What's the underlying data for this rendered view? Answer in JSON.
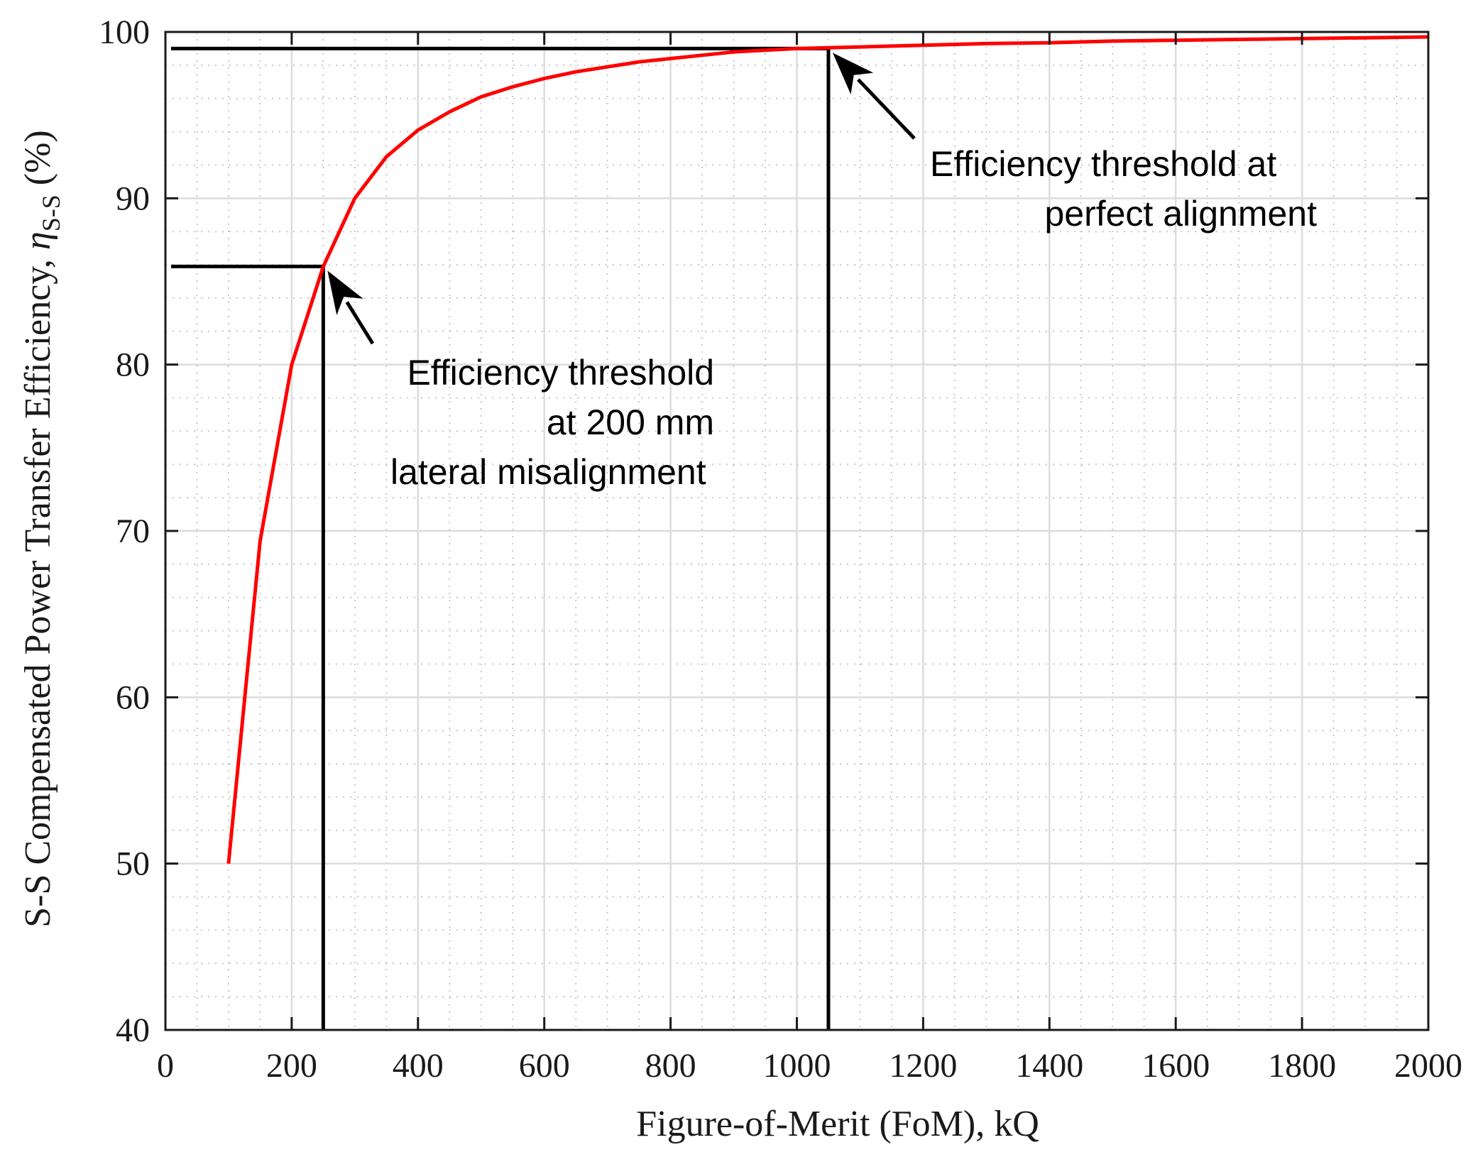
{
  "chart_data": {
    "type": "line",
    "title": "",
    "xlabel": "Figure-of-Merit (FoM), kQ",
    "ylabel": {
      "main": "S-S Compensated Power Transfer Efficiency, ",
      "symbol": "η",
      "subscript": "S-S",
      "unit": " (%)"
    },
    "xlim": [
      0,
      2000
    ],
    "ylim": [
      40,
      100
    ],
    "xticks": [
      0,
      200,
      400,
      600,
      800,
      1000,
      1200,
      1400,
      1600,
      1800,
      2000
    ],
    "yticks": [
      40,
      50,
      60,
      70,
      80,
      90,
      100
    ],
    "xminor_step": 50,
    "yminor_step": 2,
    "grid": true,
    "series": [
      {
        "name": "S-S efficiency",
        "color": "#ff0000",
        "x": [
          100,
          150,
          200,
          250,
          300,
          350,
          400,
          450,
          500,
          550,
          600,
          650,
          700,
          750,
          800,
          850,
          900,
          950,
          1000,
          1050,
          1100,
          1200,
          1300,
          1400,
          1500,
          1600,
          1700,
          1800,
          1900,
          2000
        ],
        "y": [
          50.0,
          69.4,
          80.0,
          85.9,
          90.0,
          92.5,
          94.1,
          95.2,
          96.1,
          96.7,
          97.2,
          97.6,
          97.9,
          98.2,
          98.4,
          98.6,
          98.8,
          98.9,
          99.0,
          99.05,
          99.1,
          99.2,
          99.3,
          99.35,
          99.45,
          99.5,
          99.55,
          99.6,
          99.65,
          99.7
        ]
      }
    ],
    "threshold_lines": [
      {
        "name": "threshold-200mm",
        "x": 250,
        "y": 85.9,
        "color": "#000000"
      },
      {
        "name": "threshold-perfect",
        "x": 1050,
        "y": 99.0,
        "color": "#000000"
      }
    ],
    "annotations": [
      {
        "name": "annotation-200mm",
        "lines": [
          "Efficiency threshold",
          "at 200 mm",
          "lateral misalignment"
        ],
        "target_x": 250,
        "target_y": 85.9
      },
      {
        "name": "annotation-perfect",
        "lines": [
          "Efficiency threshold at",
          "perfect alignment"
        ],
        "target_x": 1050,
        "target_y": 99.0
      }
    ]
  }
}
